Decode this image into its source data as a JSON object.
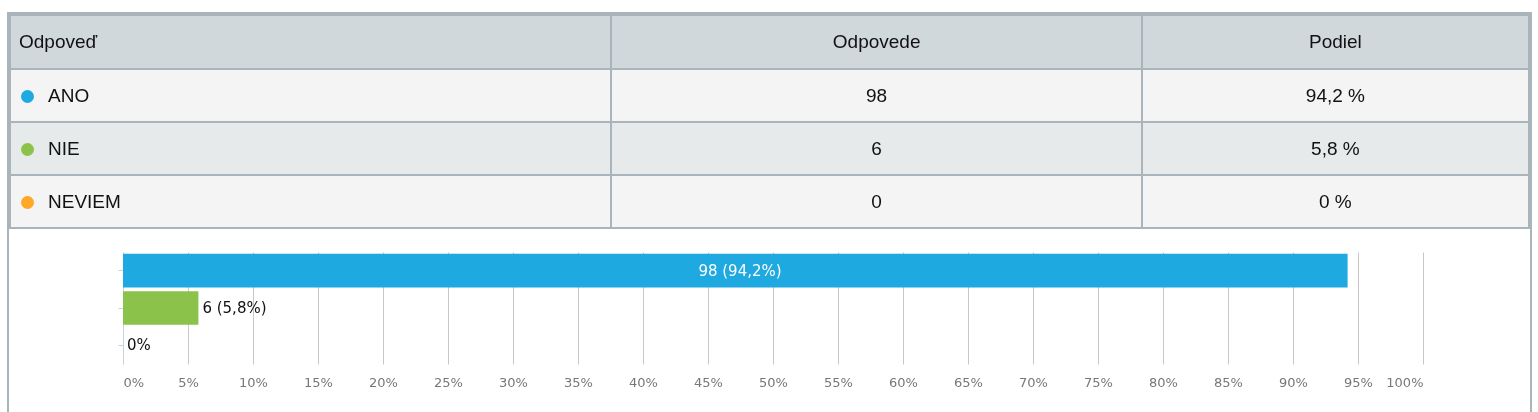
{
  "chart_data": [
    {
      "type": "other",
      "annotations": [
        "Odpoveď",
        "Odpovede",
        "Podiel",
        "ANO",
        "98",
        "94,2 %",
        "NIE",
        "6",
        "5,8 %",
        "NEVIEM",
        "0",
        "0 %"
      ]
    },
    {
      "type": "bar",
      "orientation": "horizontal",
      "categories": [
        null,
        null,
        null
      ],
      "values": [
        94.2,
        5.8,
        0
      ],
      "colors": [
        "#1fa9e1",
        "#8bc34a",
        "#ffa726"
      ],
      "value_labels": [
        "98 (94,2%)",
        "6 (5,8%)",
        "0%"
      ],
      "xlim": [
        0,
        100
      ],
      "xticks": [
        {
          "value": 0,
          "label": "0%"
        },
        {
          "value": 5,
          "label": "5%"
        },
        {
          "value": 10,
          "label": "10%"
        },
        {
          "value": 15,
          "label": "15%"
        },
        {
          "value": 20,
          "label": "20%"
        },
        {
          "value": 25,
          "label": "25%"
        },
        {
          "value": 30,
          "label": "30%"
        },
        {
          "value": 35,
          "label": "35%"
        },
        {
          "value": 40,
          "label": "40%"
        },
        {
          "value": 45,
          "label": "45%"
        },
        {
          "value": 50,
          "label": "50%"
        },
        {
          "value": 55,
          "label": "55%"
        },
        {
          "value": 60,
          "label": "60%"
        },
        {
          "value": 65,
          "label": "65%"
        },
        {
          "value": 70,
          "label": "70%"
        },
        {
          "value": 75,
          "label": "75%"
        },
        {
          "value": 80,
          "label": "80%"
        },
        {
          "value": 85,
          "label": "85%"
        },
        {
          "value": 90,
          "label": "90%"
        },
        {
          "value": 95,
          "label": "95%"
        },
        {
          "value": 100,
          "label": "100%"
        }
      ],
      "grid": "x",
      "tick_labels": "x"
    }
  ]
}
